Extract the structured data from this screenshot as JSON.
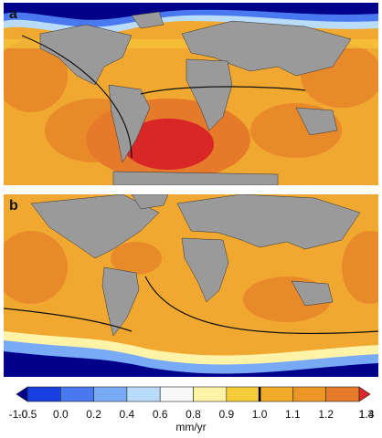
{
  "panels": [
    {
      "label": "a"
    },
    {
      "label": "b"
    }
  ],
  "colorbar": {
    "unit": "mm/yr",
    "ticks": [
      "-1.0",
      "-0.5",
      "0.0",
      "0.2",
      "0.4",
      "0.6",
      "0.8",
      "0.9",
      "1.0",
      "1.1",
      "1.2",
      "1.3",
      "1.4"
    ],
    "colors": [
      "#00008b",
      "#1a3fe0",
      "#4a78f0",
      "#78aaf5",
      "#b8dcfa",
      "#f8f8f8",
      "#fff3a8",
      "#f5cc3a",
      "#f0ac28",
      "#ec9628",
      "#e57a2a",
      "#dc2a2a"
    ],
    "marker": "1.0"
  },
  "colors": {
    "land": "#9a9a9a",
    "ocean_base": "#f0a830",
    "ocean_dark": "#e8892a",
    "ocean_light": "#f5c43a",
    "max_red": "#d92626",
    "polar_navy": "#00008b",
    "contour_line": "#111111"
  }
}
